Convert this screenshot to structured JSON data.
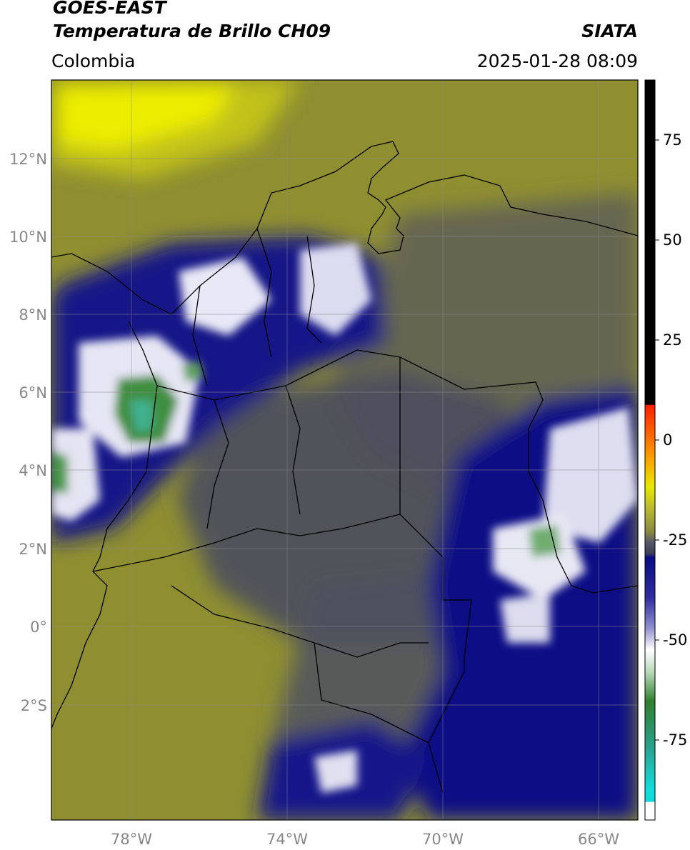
{
  "header": {
    "title_line1": "GOES-EAST",
    "title_line2": "Temperatura de Brillo CH09",
    "brand": "SIATA",
    "region": "Colombia",
    "timestamp": "2025-01-28 08:09"
  },
  "map": {
    "lat_labels": [
      "12°N",
      "10°N",
      "8°N",
      "6°N",
      "4°N",
      "2°N",
      "0°",
      "2°S"
    ],
    "lon_labels": [
      "78°W",
      "74°W",
      "70°W",
      "66°W"
    ],
    "lat_values": [
      12,
      10,
      8,
      6,
      4,
      2,
      0,
      -2
    ],
    "lon_values": [
      -78,
      -74,
      -70,
      -66
    ],
    "extent": {
      "lon_min": -80,
      "lon_max": -65,
      "lat_min": -5,
      "lat_max": 14
    }
  },
  "colorbar": {
    "tick_labels": [
      "75",
      "50",
      "25",
      "0",
      "-25",
      "-50",
      "-75"
    ],
    "tick_values": [
      75,
      50,
      25,
      0,
      -25,
      -50,
      -75
    ],
    "range": [
      -95,
      90
    ]
  },
  "colors": {
    "dry_olive": "#8f8f32",
    "yellow": "#e8e800",
    "slate": "#4b4d5e",
    "navy": "#0a0a82",
    "white": "#ffffff",
    "green": "#3f9a3f",
    "cyan": "#12cccc",
    "red": "#ff1e00"
  }
}
